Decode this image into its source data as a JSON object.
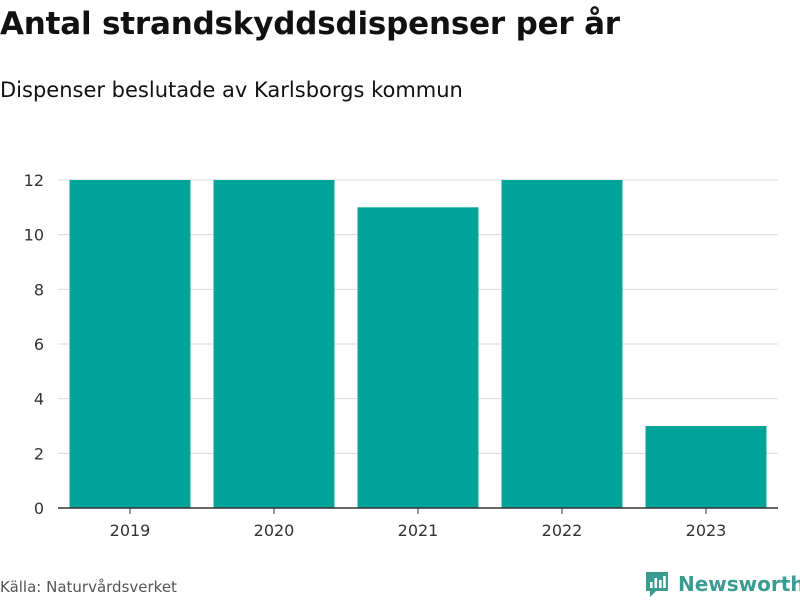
{
  "colors": {
    "bar": "#00a397",
    "grid": "#d9d9d9",
    "axis": "#333333",
    "brand": "#3a9c91"
  },
  "chart_data": {
    "type": "bar",
    "title": "Antal strandskyddsdispenser per år",
    "subtitle": "Dispenser beslutade av Karlsborgs kommun",
    "categories": [
      "2019",
      "2020",
      "2021",
      "2022",
      "2023"
    ],
    "values": [
      12,
      12,
      11,
      12,
      3
    ],
    "yticks": [
      "0",
      "2",
      "4",
      "6",
      "8",
      "10",
      "12"
    ],
    "ylim": [
      0,
      12
    ],
    "xlabel": "",
    "ylabel": "",
    "grid": true,
    "legend": "none"
  },
  "footer": {
    "source": "Källa: Naturvårdsverket",
    "brand": "Newsworthy",
    "brand_icon": "newsworthy-logo-icon"
  }
}
